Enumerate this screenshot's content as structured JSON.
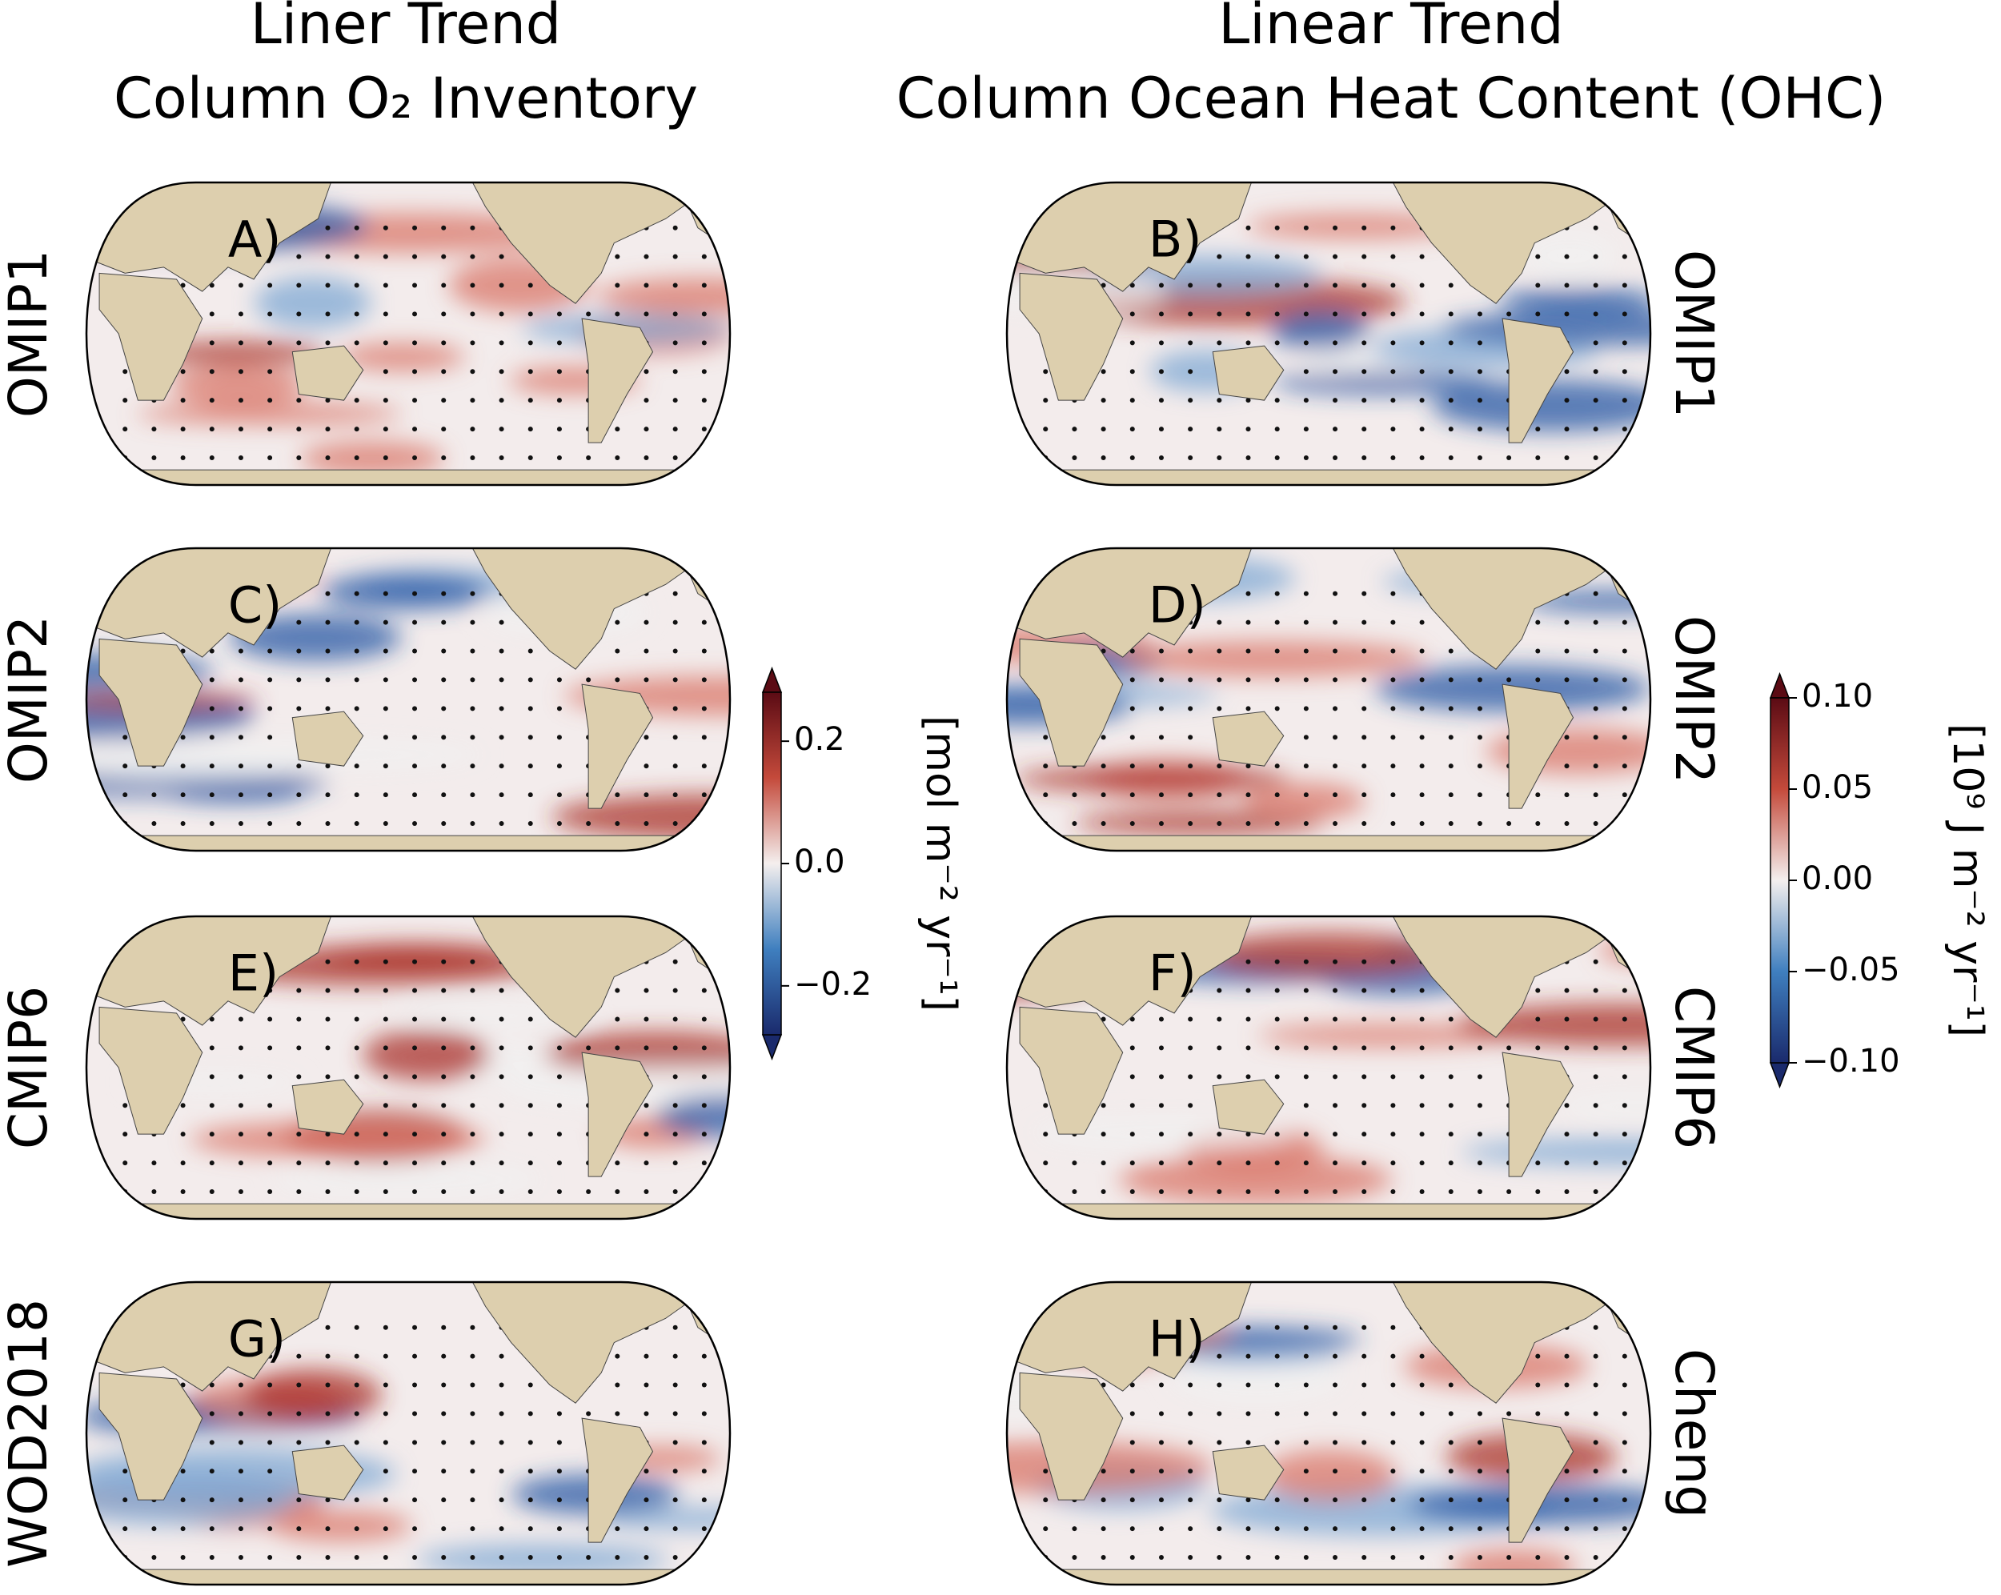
{
  "columns": [
    {
      "title": [
        "Liner Trend",
        "Column O₂ Inventory"
      ],
      "colorbar": {
        "label": "[mol m⁻² yr⁻¹]",
        "lim": [
          -0.28,
          0.28
        ],
        "ticks": [
          0.2,
          {
            "value": 0.0,
            "label": "0.0"
          },
          {
            "value": -0.2,
            "label": "−0.2"
          }
        ],
        "colormap": [
          "#1a2a6c",
          "#3f7fbf",
          "#f4efee",
          "#c44a3b",
          "#5b0b14"
        ]
      },
      "panels": [
        {
          "letter": "A)",
          "label": "OMIP1"
        },
        {
          "letter": "C)",
          "label": "OMIP2"
        },
        {
          "letter": "E)",
          "label": "CMIP6"
        },
        {
          "letter": "G)",
          "label": "WOD2018"
        }
      ]
    },
    {
      "title": [
        "Linear Trend",
        "Column Ocean Heat Content (OHC)"
      ],
      "colorbar": {
        "label": "[10⁹ J m⁻² yr⁻¹]",
        "lim": [
          -0.1,
          0.1
        ],
        "ticks": [
          {
            "value": 0.1,
            "label": "0.10"
          },
          {
            "value": 0.05,
            "label": "0.05"
          },
          {
            "value": 0.0,
            "label": "0.00"
          },
          {
            "value": -0.05,
            "label": "−0.05"
          },
          {
            "value": -0.1,
            "label": "−0.10"
          }
        ],
        "colormap": [
          "#1a2a6c",
          "#3f7fbf",
          "#f4efee",
          "#c44a3b",
          "#5b0b14"
        ]
      },
      "panels": [
        {
          "letter": "B)",
          "label": "OMIP1"
        },
        {
          "letter": "D)",
          "label": "OMIP2"
        },
        {
          "letter": "F)",
          "label": "CMIP6"
        },
        {
          "letter": "H)",
          "label": "Cheng"
        }
      ]
    }
  ]
}
